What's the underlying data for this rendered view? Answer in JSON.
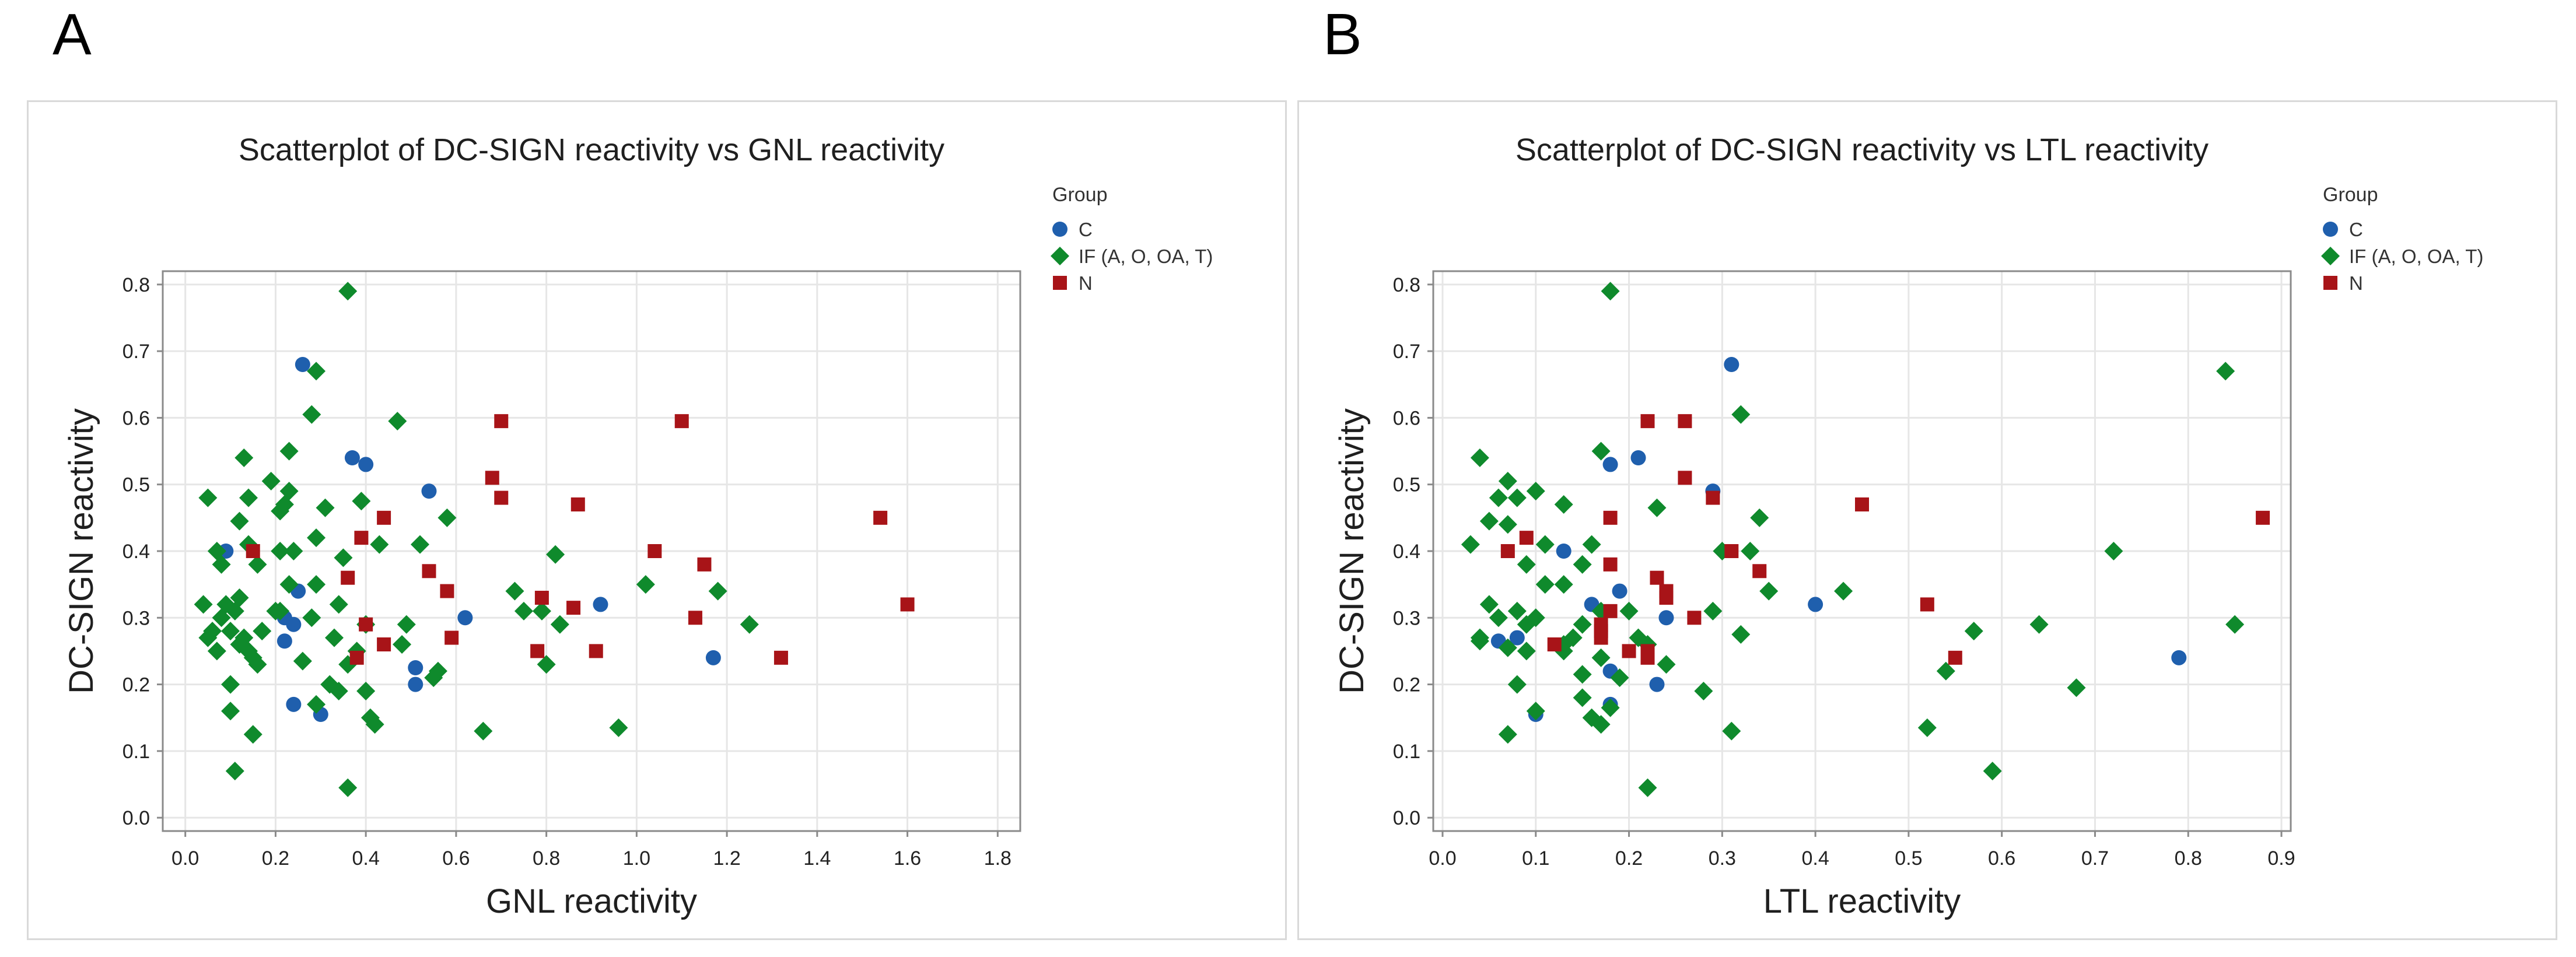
{
  "panels": [
    {
      "letter": "A"
    },
    {
      "letter": "B"
    }
  ],
  "legend": {
    "title": "Group",
    "items": [
      {
        "label": "C",
        "shape": "circle",
        "color": "#1f5fad"
      },
      {
        "label": "IF (A, O, OA, T)",
        "shape": "diamond",
        "color": "#0f8a2c"
      },
      {
        "label": "N",
        "shape": "square",
        "color": "#a81418"
      }
    ]
  },
  "chart_data": [
    {
      "type": "scatter",
      "title": "Scatterplot of DC-SIGN reactivity vs GNL reactivity",
      "xlabel": "GNL reactivity",
      "ylabel": "DC-SIGN reactivity",
      "xlim": [
        -0.05,
        1.85
      ],
      "ylim": [
        -0.02,
        0.82
      ],
      "xticks": [
        0.0,
        0.2,
        0.4,
        0.6,
        0.8,
        1.0,
        1.2,
        1.4,
        1.6,
        1.8
      ],
      "xtick_labels": [
        "0.0",
        "0.2",
        "0.4",
        "0.6",
        "0.8",
        "1.0",
        "1.2",
        "1.4",
        "1.6",
        "1.8"
      ],
      "yticks": [
        0.0,
        0.1,
        0.2,
        0.3,
        0.4,
        0.5,
        0.6,
        0.7,
        0.8
      ],
      "ytick_labels": [
        "0.0",
        "0.1",
        "0.2",
        "0.3",
        "0.4",
        "0.5",
        "0.6",
        "0.7",
        "0.8"
      ],
      "grid": true,
      "legend_position": "right",
      "series": [
        {
          "name": "C",
          "points": [
            [
              0.26,
              0.68
            ],
            [
              0.37,
              0.54
            ],
            [
              0.4,
              0.53
            ],
            [
              0.54,
              0.49
            ],
            [
              0.09,
              0.4
            ],
            [
              0.25,
              0.34
            ],
            [
              0.22,
              0.3
            ],
            [
              0.24,
              0.29
            ],
            [
              0.62,
              0.3
            ],
            [
              0.92,
              0.32
            ],
            [
              0.22,
              0.265
            ],
            [
              0.51,
              0.225
            ],
            [
              0.51,
              0.2
            ],
            [
              1.17,
              0.24
            ],
            [
              0.24,
              0.17
            ],
            [
              0.3,
              0.155
            ]
          ]
        },
        {
          "name": "IF (A, O, OA, T)",
          "points": [
            [
              0.36,
              0.79
            ],
            [
              0.29,
              0.67
            ],
            [
              0.28,
              0.605
            ],
            [
              0.47,
              0.595
            ],
            [
              0.13,
              0.54
            ],
            [
              0.23,
              0.55
            ],
            [
              0.19,
              0.505
            ],
            [
              0.23,
              0.49
            ],
            [
              0.12,
              0.445
            ],
            [
              0.14,
              0.48
            ],
            [
              0.05,
              0.48
            ],
            [
              0.08,
              0.38
            ],
            [
              0.07,
              0.4
            ],
            [
              0.14,
              0.41
            ],
            [
              0.16,
              0.38
            ],
            [
              0.21,
              0.46
            ],
            [
              0.22,
              0.47
            ],
            [
              0.31,
              0.465
            ],
            [
              0.39,
              0.475
            ],
            [
              0.58,
              0.45
            ],
            [
              0.43,
              0.41
            ],
            [
              0.52,
              0.41
            ],
            [
              0.21,
              0.4
            ],
            [
              0.24,
              0.4
            ],
            [
              0.29,
              0.42
            ],
            [
              0.35,
              0.39
            ],
            [
              0.82,
              0.395
            ],
            [
              0.12,
              0.33
            ],
            [
              0.04,
              0.32
            ],
            [
              0.09,
              0.32
            ],
            [
              0.11,
              0.31
            ],
            [
              0.17,
              0.28
            ],
            [
              0.08,
              0.3
            ],
            [
              0.06,
              0.28
            ],
            [
              0.05,
              0.27
            ],
            [
              0.13,
              0.27
            ],
            [
              0.1,
              0.28
            ],
            [
              0.07,
              0.25
            ],
            [
              0.12,
              0.26
            ],
            [
              0.14,
              0.25
            ],
            [
              0.15,
              0.24
            ],
            [
              0.16,
              0.23
            ],
            [
              0.2,
              0.31
            ],
            [
              0.21,
              0.31
            ],
            [
              0.23,
              0.35
            ],
            [
              0.28,
              0.3
            ],
            [
              0.29,
              0.35
            ],
            [
              0.34,
              0.32
            ],
            [
              0.33,
              0.27
            ],
            [
              0.26,
              0.235
            ],
            [
              0.38,
              0.25
            ],
            [
              0.4,
              0.29
            ],
            [
              0.48,
              0.26
            ],
            [
              0.49,
              0.29
            ],
            [
              0.55,
              0.21
            ],
            [
              0.56,
              0.22
            ],
            [
              0.73,
              0.34
            ],
            [
              0.75,
              0.31
            ],
            [
              0.79,
              0.31
            ],
            [
              0.8,
              0.23
            ],
            [
              0.83,
              0.29
            ],
            [
              1.02,
              0.35
            ],
            [
              1.18,
              0.34
            ],
            [
              1.25,
              0.29
            ],
            [
              0.1,
              0.2
            ],
            [
              0.1,
              0.16
            ],
            [
              0.15,
              0.125
            ],
            [
              0.29,
              0.17
            ],
            [
              0.32,
              0.2
            ],
            [
              0.34,
              0.19
            ],
            [
              0.36,
              0.23
            ],
            [
              0.4,
              0.19
            ],
            [
              0.41,
              0.15
            ],
            [
              0.42,
              0.14
            ],
            [
              0.66,
              0.13
            ],
            [
              0.96,
              0.135
            ],
            [
              0.36,
              0.045
            ],
            [
              0.11,
              0.07
            ]
          ]
        },
        {
          "name": "N",
          "points": [
            [
              0.7,
              0.595
            ],
            [
              1.1,
              0.595
            ],
            [
              0.68,
              0.51
            ],
            [
              0.7,
              0.48
            ],
            [
              0.87,
              0.47
            ],
            [
              0.44,
              0.45
            ],
            [
              1.54,
              0.45
            ],
            [
              0.39,
              0.42
            ],
            [
              1.04,
              0.4
            ],
            [
              0.15,
              0.4
            ],
            [
              1.15,
              0.38
            ],
            [
              0.54,
              0.37
            ],
            [
              0.36,
              0.36
            ],
            [
              0.58,
              0.34
            ],
            [
              0.79,
              0.33
            ],
            [
              0.86,
              0.315
            ],
            [
              1.6,
              0.32
            ],
            [
              1.13,
              0.3
            ],
            [
              0.4,
              0.29
            ],
            [
              0.59,
              0.27
            ],
            [
              0.44,
              0.26
            ],
            [
              0.78,
              0.25
            ],
            [
              0.91,
              0.25
            ],
            [
              0.38,
              0.24
            ],
            [
              1.32,
              0.24
            ]
          ]
        }
      ]
    },
    {
      "type": "scatter",
      "title": "Scatterplot of DC-SIGN reactivity vs LTL reactivity",
      "xlabel": "LTL reactivity",
      "ylabel": "DC-SIGN reactivity",
      "xlim": [
        -0.01,
        0.91
      ],
      "ylim": [
        -0.02,
        0.82
      ],
      "xticks": [
        0.0,
        0.1,
        0.2,
        0.3,
        0.4,
        0.5,
        0.6,
        0.7,
        0.8,
        0.9
      ],
      "xtick_labels": [
        "0.0",
        "0.1",
        "0.2",
        "0.3",
        "0.4",
        "0.5",
        "0.6",
        "0.7",
        "0.8",
        "0.9"
      ],
      "yticks": [
        0.0,
        0.1,
        0.2,
        0.3,
        0.4,
        0.5,
        0.6,
        0.7,
        0.8
      ],
      "ytick_labels": [
        "0.0",
        "0.1",
        "0.2",
        "0.3",
        "0.4",
        "0.5",
        "0.6",
        "0.7",
        "0.8"
      ],
      "grid": true,
      "legend_position": "right",
      "series": [
        {
          "name": "C",
          "points": [
            [
              0.31,
              0.68
            ],
            [
              0.21,
              0.54
            ],
            [
              0.18,
              0.53
            ],
            [
              0.29,
              0.49
            ],
            [
              0.13,
              0.4
            ],
            [
              0.4,
              0.32
            ],
            [
              0.24,
              0.3
            ],
            [
              0.16,
              0.32
            ],
            [
              0.19,
              0.34
            ],
            [
              0.06,
              0.265
            ],
            [
              0.08,
              0.27
            ],
            [
              0.79,
              0.24
            ],
            [
              0.23,
              0.2
            ],
            [
              0.18,
              0.22
            ],
            [
              0.1,
              0.155
            ],
            [
              0.18,
              0.17
            ]
          ]
        },
        {
          "name": "IF (A, O, OA, T)",
          "points": [
            [
              0.18,
              0.79
            ],
            [
              0.84,
              0.67
            ],
            [
              0.32,
              0.605
            ],
            [
              0.04,
              0.54
            ],
            [
              0.17,
              0.55
            ],
            [
              0.07,
              0.505
            ],
            [
              0.06,
              0.48
            ],
            [
              0.08,
              0.48
            ],
            [
              0.1,
              0.49
            ],
            [
              0.13,
              0.47
            ],
            [
              0.23,
              0.465
            ],
            [
              0.05,
              0.445
            ],
            [
              0.34,
              0.45
            ],
            [
              0.03,
              0.41
            ],
            [
              0.07,
              0.44
            ],
            [
              0.09,
              0.38
            ],
            [
              0.11,
              0.41
            ],
            [
              0.15,
              0.38
            ],
            [
              0.16,
              0.41
            ],
            [
              0.3,
              0.4
            ],
            [
              0.33,
              0.4
            ],
            [
              0.72,
              0.4
            ],
            [
              0.11,
              0.35
            ],
            [
              0.13,
              0.35
            ],
            [
              0.35,
              0.34
            ],
            [
              0.43,
              0.34
            ],
            [
              0.05,
              0.32
            ],
            [
              0.06,
              0.3
            ],
            [
              0.08,
              0.31
            ],
            [
              0.09,
              0.29
            ],
            [
              0.1,
              0.3
            ],
            [
              0.04,
              0.27
            ],
            [
              0.04,
              0.265
            ],
            [
              0.07,
              0.255
            ],
            [
              0.09,
              0.25
            ],
            [
              0.13,
              0.26
            ],
            [
              0.14,
              0.27
            ],
            [
              0.15,
              0.29
            ],
            [
              0.17,
              0.31
            ],
            [
              0.2,
              0.31
            ],
            [
              0.21,
              0.27
            ],
            [
              0.22,
              0.26
            ],
            [
              0.24,
              0.23
            ],
            [
              0.29,
              0.31
            ],
            [
              0.32,
              0.275
            ],
            [
              0.57,
              0.28
            ],
            [
              0.64,
              0.29
            ],
            [
              0.85,
              0.29
            ],
            [
              0.13,
              0.25
            ],
            [
              0.15,
              0.215
            ],
            [
              0.17,
              0.24
            ],
            [
              0.19,
              0.21
            ],
            [
              0.08,
              0.2
            ],
            [
              0.15,
              0.18
            ],
            [
              0.16,
              0.15
            ],
            [
              0.17,
              0.14
            ],
            [
              0.18,
              0.165
            ],
            [
              0.1,
              0.16
            ],
            [
              0.28,
              0.19
            ],
            [
              0.07,
              0.125
            ],
            [
              0.31,
              0.13
            ],
            [
              0.52,
              0.135
            ],
            [
              0.54,
              0.22
            ],
            [
              0.68,
              0.195
            ],
            [
              0.22,
              0.045
            ],
            [
              0.59,
              0.07
            ]
          ]
        },
        {
          "name": "N",
          "points": [
            [
              0.22,
              0.595
            ],
            [
              0.26,
              0.595
            ],
            [
              0.26,
              0.51
            ],
            [
              0.29,
              0.48
            ],
            [
              0.45,
              0.47
            ],
            [
              0.18,
              0.45
            ],
            [
              0.88,
              0.45
            ],
            [
              0.09,
              0.42
            ],
            [
              0.07,
              0.4
            ],
            [
              0.31,
              0.4
            ],
            [
              0.18,
              0.38
            ],
            [
              0.34,
              0.37
            ],
            [
              0.23,
              0.36
            ],
            [
              0.24,
              0.34
            ],
            [
              0.24,
              0.33
            ],
            [
              0.52,
              0.32
            ],
            [
              0.18,
              0.31
            ],
            [
              0.27,
              0.3
            ],
            [
              0.17,
              0.29
            ],
            [
              0.17,
              0.27
            ],
            [
              0.17,
              0.28
            ],
            [
              0.12,
              0.26
            ],
            [
              0.2,
              0.25
            ],
            [
              0.22,
              0.25
            ],
            [
              0.22,
              0.24
            ],
            [
              0.55,
              0.24
            ]
          ]
        }
      ]
    }
  ]
}
